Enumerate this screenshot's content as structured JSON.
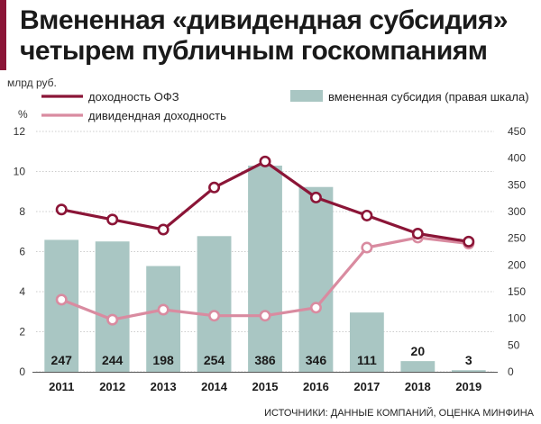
{
  "title": {
    "line1": "Вмененная «дивидендная субсидия»",
    "line2": "четырем публичным госкомпаниям"
  },
  "source": "ИСТОЧНИКИ: ДАННЫЕ КОМПАНИЙ, ОЦЕНКА МИНФИНА",
  "colors": {
    "ofz": "#8b1537",
    "dividend": "#d98ba0",
    "bars": "#a9c6c3",
    "accent": "#8b1537"
  },
  "chart_data": {
    "type": "bar",
    "categories": [
      "2011",
      "2012",
      "2013",
      "2014",
      "2015",
      "2016",
      "2017",
      "2018",
      "2019"
    ],
    "left_axis_unit": "%",
    "right_axis_unit": "млрд руб.",
    "left_ylim": [
      0,
      12
    ],
    "right_ylim": [
      0,
      450
    ],
    "left_ticks": [
      0,
      2,
      4,
      6,
      8,
      10,
      12
    ],
    "right_ticks": [
      0,
      50,
      100,
      150,
      200,
      250,
      300,
      350,
      400,
      450
    ],
    "grid": true,
    "bars": {
      "name": "вмененная субсидия (правая шкала)",
      "axis": "right",
      "values": [
        247,
        244,
        198,
        254,
        386,
        346,
        111,
        20,
        3
      ]
    },
    "series": [
      {
        "name": "доходность ОФЗ",
        "axis": "left",
        "values": [
          8.1,
          7.6,
          7.1,
          9.2,
          10.5,
          8.7,
          7.8,
          6.9,
          6.5
        ]
      },
      {
        "name": "дивидендная доходность",
        "axis": "left",
        "values": [
          3.6,
          2.6,
          3.1,
          2.8,
          2.8,
          3.2,
          6.2,
          6.7,
          6.4
        ]
      }
    ]
  }
}
